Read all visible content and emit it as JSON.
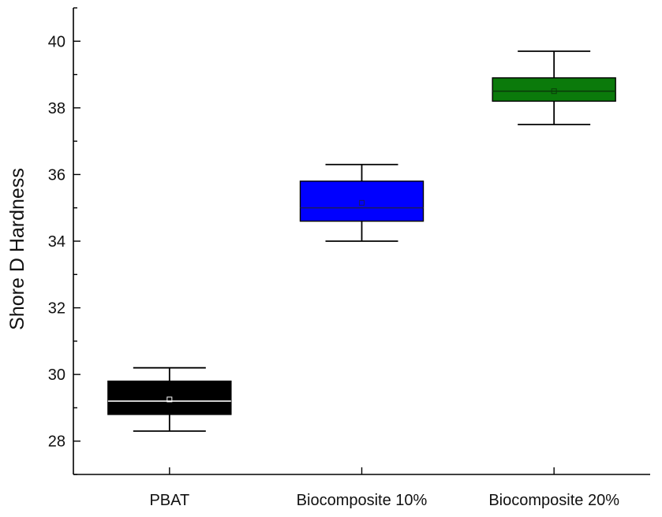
{
  "chart_data": {
    "type": "box",
    "title": "",
    "xlabel": "",
    "ylabel": "Shore D Hardness",
    "ylim": [
      27,
      41
    ],
    "yticks": [
      28,
      30,
      32,
      34,
      36,
      38,
      40
    ],
    "y_minor_step": 1,
    "grid": false,
    "categories": [
      "PBAT",
      "Biocomposite 10%",
      "Biocomposite 20%"
    ],
    "boxes": [
      {
        "category": "PBAT",
        "min": 28.3,
        "q1": 28.8,
        "median": 29.2,
        "mean": 29.25,
        "q3": 29.8,
        "max": 30.2,
        "color": "#000000",
        "median_color": "#ffffff"
      },
      {
        "category": "Biocomposite 10%",
        "min": 34.0,
        "q1": 34.6,
        "median": 35.0,
        "mean": 35.15,
        "q3": 35.8,
        "max": 36.3,
        "color": "#0000ff",
        "median_color": "#1a1a66"
      },
      {
        "category": "Biocomposite 20%",
        "min": 37.5,
        "q1": 38.2,
        "median": 38.5,
        "mean": 38.5,
        "q3": 38.9,
        "max": 39.7,
        "color": "#0b7a0b",
        "median_color": "#0a3d0a"
      }
    ]
  }
}
